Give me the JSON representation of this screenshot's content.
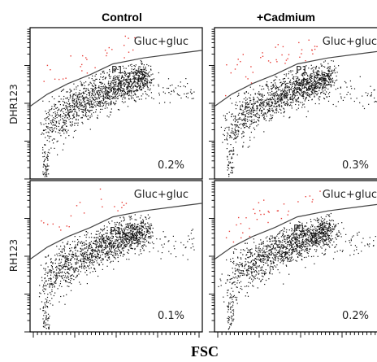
{
  "figure": {
    "column_titles": [
      "Control",
      "+Cadmium"
    ],
    "row_labels": [
      "DHR123",
      "RH123"
    ],
    "x_axis_label": "FSC",
    "gate_name": "P1"
  },
  "colors": {
    "main_events": "#111111",
    "gated_events": "#e8403a",
    "gate_line": "#444444",
    "axis": "#000000"
  },
  "chart_data": [
    {
      "type": "scatter",
      "column": "Control",
      "row": "DHR123",
      "label": "Gluc+gluc",
      "gate": "P1",
      "percent_in_gate": "0.2%",
      "gated_fraction": 0.002,
      "seed": 11
    },
    {
      "type": "scatter",
      "column": "+Cadmium",
      "row": "DHR123",
      "label": "Gluc+gluc",
      "gate": "P1",
      "percent_in_gate": "0.3%",
      "gated_fraction": 0.003,
      "seed": 23
    },
    {
      "type": "scatter",
      "column": "Control",
      "row": "RH123",
      "label": "Gluc+gluc",
      "gate": "P1",
      "percent_in_gate": "0.1%",
      "gated_fraction": 0.001,
      "seed": 37
    },
    {
      "type": "scatter",
      "column": "+Cadmium",
      "row": "RH123",
      "label": "Gluc+gluc",
      "gate": "P1",
      "percent_in_gate": "0.2%",
      "gated_fraction": 0.002,
      "seed": 49
    }
  ]
}
